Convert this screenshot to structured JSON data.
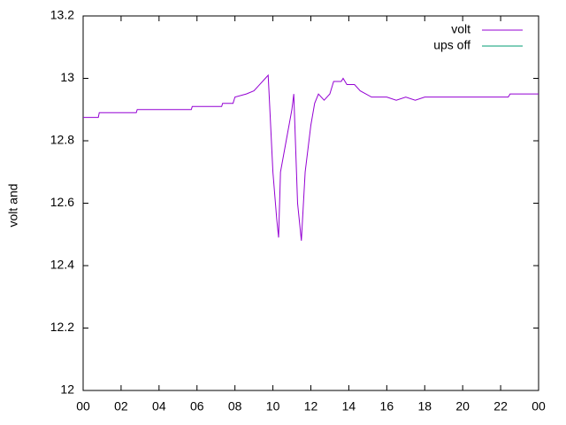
{
  "chart_data": {
    "type": "line",
    "y_label": "volt and",
    "x": [
      0,
      0.8,
      0.85,
      2.8,
      2.85,
      5.7,
      5.75,
      7.3,
      7.35,
      7.9,
      8.0,
      8.6,
      9.0,
      9.3,
      9.6,
      9.75,
      9.8,
      10.0,
      10.2,
      10.3,
      10.4,
      10.7,
      11.0,
      11.1,
      11.3,
      11.5,
      11.7,
      12.0,
      12.2,
      12.4,
      12.7,
      13.0,
      13.2,
      13.6,
      13.7,
      13.9,
      14.3,
      14.6,
      15.2,
      16.0,
      16.5,
      17.0,
      17.5,
      18.0,
      22.4,
      22.5,
      24
    ],
    "series": [
      {
        "name": "volt",
        "color": "#9400d3",
        "values": [
          12.875,
          12.875,
          12.89,
          12.89,
          12.9,
          12.9,
          12.91,
          12.91,
          12.92,
          12.92,
          12.94,
          12.95,
          12.96,
          12.98,
          13.0,
          13.01,
          12.95,
          12.7,
          12.55,
          12.49,
          12.7,
          12.8,
          12.9,
          12.95,
          12.6,
          12.48,
          12.7,
          12.85,
          12.92,
          12.95,
          12.93,
          12.95,
          12.99,
          12.99,
          13.0,
          12.98,
          12.98,
          12.96,
          12.94,
          12.94,
          12.93,
          12.94,
          12.93,
          12.94,
          12.94,
          12.95,
          12.95
        ]
      },
      {
        "name": "ups off",
        "color": "#009e73",
        "values": [
          null,
          null,
          null,
          null,
          null,
          null,
          null,
          null,
          null,
          null,
          null,
          null,
          null,
          null,
          null,
          null,
          null,
          null,
          null,
          null,
          null,
          null,
          null,
          null,
          null,
          null,
          null,
          null,
          null,
          null,
          null,
          null,
          null,
          null,
          null,
          null,
          null,
          null,
          null,
          null,
          null,
          null,
          null,
          null,
          null,
          null,
          null
        ]
      }
    ],
    "xlim": [
      0,
      24
    ],
    "xticks": [
      {
        "value": 0,
        "label": "00"
      },
      {
        "value": 2,
        "label": "02"
      },
      {
        "value": 4,
        "label": "04"
      },
      {
        "value": 6,
        "label": "06"
      },
      {
        "value": 8,
        "label": "08"
      },
      10,
      12,
      14,
      16,
      18,
      20,
      22,
      {
        "value": 24,
        "label": "00"
      }
    ],
    "ylim": [
      12,
      13.2
    ],
    "yticks": [
      12,
      12.2,
      12.4,
      12.6,
      12.8,
      13,
      13.2
    ],
    "legend": "top-right"
  }
}
